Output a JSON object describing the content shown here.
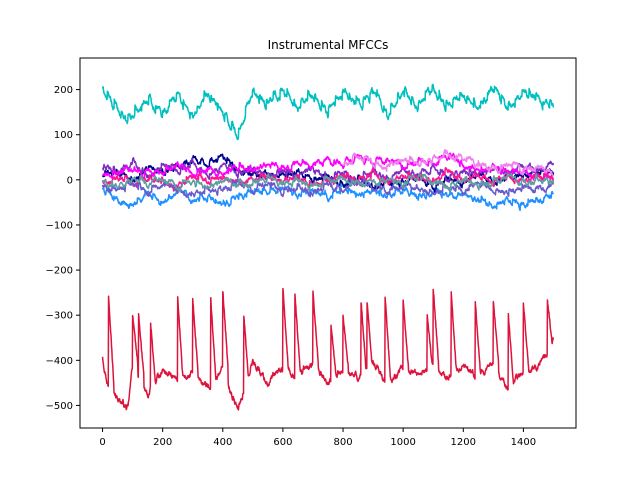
{
  "chart_data": {
    "type": "line",
    "title": "Instrumental MFCCs",
    "xlabel": "",
    "ylabel": "",
    "xlim": [
      -75,
      1575
    ],
    "ylim": [
      -550,
      270
    ],
    "x_ticks": [
      0,
      200,
      400,
      600,
      800,
      1000,
      1200,
      1400
    ],
    "y_ticks": [
      200,
      100,
      0,
      -100,
      -200,
      -300,
      -400,
      -500
    ],
    "x_tick_labels": [
      "0",
      "200",
      "400",
      "600",
      "800",
      "1000",
      "1200",
      "1400"
    ],
    "y_tick_labels": [
      "200",
      "100",
      "0",
      "−100",
      "−200",
      "−300",
      "−400",
      "−500"
    ],
    "n_points": 1500,
    "grid": false,
    "legend": "none",
    "series": [
      {
        "color": "#dc143c",
        "x": [
          0,
          20,
          50,
          85,
          100,
          150,
          200,
          250,
          300,
          350,
          400,
          450,
          500,
          550,
          600,
          650,
          700,
          750,
          800,
          850,
          900,
          950,
          1000,
          1050,
          1100,
          1150,
          1200,
          1250,
          1300,
          1350,
          1400,
          1450,
          1500
        ],
        "values": [
          -390,
          -460,
          -480,
          -510,
          -410,
          -480,
          -420,
          -450,
          -430,
          -460,
          -420,
          -510,
          -400,
          -450,
          -420,
          -430,
          -410,
          -450,
          -420,
          -440,
          -410,
          -450,
          -420,
          -430,
          -410,
          -440,
          -420,
          -440,
          -410,
          -460,
          -420,
          -420,
          -350
        ],
        "spike_peaks": [
          [
            20,
            -255
          ],
          [
            100,
            -300
          ],
          [
            120,
            -300
          ],
          [
            160,
            -320
          ],
          [
            250,
            -260
          ],
          [
            300,
            -265
          ],
          [
            360,
            -265
          ],
          [
            400,
            -245
          ],
          [
            470,
            -300
          ],
          [
            600,
            -240
          ],
          [
            640,
            -255
          ],
          [
            700,
            -250
          ],
          [
            760,
            -320
          ],
          [
            800,
            -300
          ],
          [
            860,
            -270
          ],
          [
            880,
            -270
          ],
          [
            940,
            -260
          ],
          [
            1000,
            -270
          ],
          [
            1080,
            -300
          ],
          [
            1100,
            -240
          ],
          [
            1160,
            -250
          ],
          [
            1240,
            -270
          ],
          [
            1300,
            -270
          ],
          [
            1350,
            -300
          ],
          [
            1400,
            -275
          ],
          [
            1480,
            -265
          ]
        ]
      },
      {
        "color": "#00bfbf",
        "x": [
          0,
          30,
          80,
          150,
          200,
          250,
          300,
          350,
          400,
          450,
          500,
          550,
          600,
          650,
          700,
          750,
          800,
          850,
          900,
          950,
          1000,
          1050,
          1100,
          1150,
          1200,
          1250,
          1300,
          1350,
          1400,
          1450,
          1500
        ],
        "values": [
          200,
          170,
          130,
          180,
          150,
          190,
          140,
          185,
          150,
          95,
          195,
          170,
          200,
          160,
          190,
          150,
          200,
          170,
          195,
          140,
          200,
          165,
          200,
          160,
          190,
          155,
          205,
          160,
          195,
          185,
          155
        ]
      },
      {
        "color": "#1e90ff",
        "x": [
          0,
          50,
          100,
          150,
          200,
          250,
          300,
          350,
          400,
          450,
          500,
          550,
          600,
          650,
          700,
          750,
          800,
          850,
          900,
          950,
          1000,
          1050,
          1100,
          1150,
          1200,
          1250,
          1300,
          1350,
          1400,
          1450,
          1500
        ],
        "values": [
          -20,
          -45,
          -60,
          -30,
          -55,
          -25,
          -50,
          -35,
          -55,
          -40,
          -25,
          -30,
          -20,
          -35,
          -25,
          -40,
          -15,
          -35,
          -25,
          -40,
          -20,
          -35,
          -25,
          -40,
          -30,
          -45,
          -60,
          -40,
          -55,
          -45,
          -30
        ]
      },
      {
        "color": "#00008b",
        "x": [
          0,
          50,
          100,
          150,
          200,
          250,
          300,
          350,
          400,
          450,
          500,
          550,
          600,
          650,
          700,
          750,
          800,
          850,
          900,
          950,
          1000,
          1050,
          1100,
          1150,
          1200,
          1250,
          1300,
          1350,
          1400,
          1450,
          1500
        ],
        "values": [
          10,
          20,
          0,
          25,
          15,
          30,
          45,
          35,
          50,
          20,
          10,
          15,
          5,
          20,
          0,
          10,
          -10,
          5,
          -15,
          0,
          -10,
          5,
          -20,
          0,
          -10,
          15,
          -5,
          10,
          5,
          15,
          10
        ]
      },
      {
        "color": "#7b2fbf",
        "x": [
          0,
          50,
          100,
          150,
          200,
          250,
          300,
          350,
          400,
          450,
          500,
          550,
          600,
          650,
          700,
          750,
          800,
          850,
          900,
          950,
          1000,
          1050,
          1100,
          1150,
          1200,
          1250,
          1300,
          1350,
          1400,
          1450,
          1500
        ],
        "values": [
          30,
          15,
          40,
          10,
          35,
          20,
          40,
          15,
          30,
          10,
          25,
          5,
          20,
          10,
          25,
          0,
          15,
          -5,
          20,
          0,
          20,
          10,
          25,
          5,
          20,
          15,
          25,
          10,
          30,
          20,
          35
        ]
      },
      {
        "color": "#ff00ff",
        "x": [
          0,
          50,
          100,
          150,
          200,
          250,
          300,
          350,
          400,
          450,
          500,
          550,
          600,
          650,
          700,
          750,
          800,
          850,
          900,
          950,
          1000,
          1050,
          1100,
          1150,
          1200,
          1250,
          1300,
          1350,
          1400,
          1450,
          1500
        ],
        "values": [
          5,
          15,
          25,
          10,
          20,
          30,
          15,
          25,
          10,
          30,
          20,
          35,
          25,
          40,
          30,
          45,
          35,
          50,
          40,
          45,
          30,
          40,
          35,
          55,
          30,
          20,
          25,
          15,
          20,
          10,
          5
        ]
      },
      {
        "color": "#ee82ee",
        "x": [
          800,
          850,
          900,
          950,
          1000,
          1050,
          1100,
          1150,
          1200,
          1250,
          1300,
          1350,
          1400,
          1450,
          1500
        ],
        "values": [
          30,
          50,
          40,
          30,
          45,
          35,
          40,
          60,
          45,
          35,
          25,
          30,
          20,
          25,
          15
        ]
      },
      {
        "color": "#ff1493",
        "x": [
          0,
          50,
          100,
          150,
          200,
          250,
          300,
          350,
          400,
          450,
          500,
          550,
          600,
          650,
          700,
          750,
          800,
          850,
          900,
          950,
          1000,
          1050,
          1100,
          1150,
          1200,
          1250,
          1300,
          1350,
          1400,
          1450,
          1500
        ],
        "values": [
          -5,
          10,
          -10,
          5,
          0,
          -15,
          10,
          -5,
          5,
          -10,
          0,
          10,
          -5,
          5,
          -10,
          0,
          10,
          0,
          15,
          -5,
          5,
          10,
          -5,
          20,
          0,
          10,
          -5,
          5,
          0,
          10,
          5
        ]
      },
      {
        "color": "#6a5acd",
        "x": [
          0,
          50,
          100,
          150,
          200,
          250,
          300,
          350,
          400,
          450,
          500,
          550,
          600,
          650,
          700,
          750,
          800,
          850,
          900,
          950,
          1000,
          1050,
          1100,
          1150,
          1200,
          1250,
          1300,
          1350,
          1400,
          1450,
          1500
        ],
        "values": [
          -15,
          -25,
          -5,
          -30,
          -10,
          -20,
          -35,
          -15,
          -25,
          -5,
          -20,
          -10,
          -25,
          -15,
          -30,
          -10,
          -20,
          -5,
          -15,
          -25,
          -10,
          -20,
          -30,
          -15,
          -25,
          -10,
          -20,
          -30,
          -15,
          -25,
          -10
        ]
      },
      {
        "color": "#5f9ea0",
        "x": [
          0,
          50,
          100,
          150,
          200,
          250,
          300,
          350,
          400,
          450,
          500,
          550,
          600,
          650,
          700,
          750,
          800,
          850,
          900,
          950,
          1000,
          1050,
          1100,
          1150,
          1200,
          1250,
          1300,
          1350,
          1400,
          1450,
          1500
        ],
        "values": [
          -5,
          -15,
          0,
          -10,
          5,
          -15,
          -5,
          -20,
          0,
          -10,
          -5,
          5,
          -10,
          0,
          -15,
          -5,
          5,
          -10,
          -5,
          0,
          -10,
          5,
          -5,
          -15,
          0,
          -10,
          -5,
          5,
          -10,
          0,
          -5
        ]
      }
    ]
  }
}
